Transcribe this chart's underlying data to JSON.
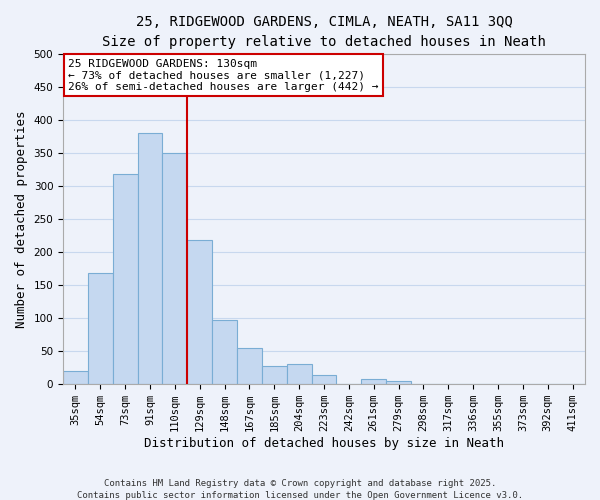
{
  "title_line1": "25, RIDGEWOOD GARDENS, CIMLA, NEATH, SA11 3QQ",
  "title_line2": "Size of property relative to detached houses in Neath",
  "xlabel": "Distribution of detached houses by size in Neath",
  "ylabel": "Number of detached properties",
  "bar_color": "#c5d8f0",
  "bar_edge_color": "#7aadd4",
  "grid_color": "#c8d8ee",
  "background_color": "#eef2fa",
  "bin_labels": [
    "35sqm",
    "54sqm",
    "73sqm",
    "91sqm",
    "110sqm",
    "129sqm",
    "148sqm",
    "167sqm",
    "185sqm",
    "204sqm",
    "223sqm",
    "242sqm",
    "261sqm",
    "279sqm",
    "298sqm",
    "317sqm",
    "336sqm",
    "355sqm",
    "373sqm",
    "392sqm",
    "411sqm"
  ],
  "bar_values": [
    20,
    168,
    318,
    380,
    350,
    218,
    97,
    55,
    27,
    30,
    14,
    0,
    8,
    5,
    0,
    0,
    0,
    0,
    0,
    0,
    0
  ],
  "ylim": [
    0,
    500
  ],
  "yticks": [
    0,
    50,
    100,
    150,
    200,
    250,
    300,
    350,
    400,
    450,
    500
  ],
  "vline_x_idx": 5,
  "vline_color": "#cc0000",
  "annotation_title": "25 RIDGEWOOD GARDENS: 130sqm",
  "annotation_line2": "← 73% of detached houses are smaller (1,227)",
  "annotation_line3": "26% of semi-detached houses are larger (442) →",
  "annotation_box_color": "#ffffff",
  "annotation_box_edge": "#cc0000",
  "footer_line1": "Contains HM Land Registry data © Crown copyright and database right 2025.",
  "footer_line2": "Contains public sector information licensed under the Open Government Licence v3.0.",
  "title_fontsize": 10,
  "subtitle_fontsize": 9.5,
  "axis_label_fontsize": 9,
  "tick_fontsize": 7.5,
  "annotation_fontsize": 8,
  "footer_fontsize": 6.5
}
